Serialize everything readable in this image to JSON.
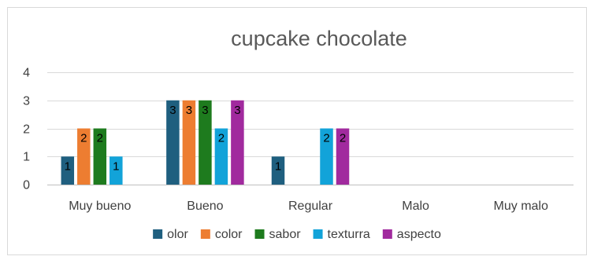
{
  "chart_data": {
    "type": "bar",
    "title": "cupcake chocolate",
    "categories": [
      "Muy bueno",
      "Bueno",
      "Regular",
      "Malo",
      "Muy malo"
    ],
    "series": [
      {
        "name": "olor",
        "color": "#1f5f7f",
        "values": [
          1,
          3,
          1,
          0,
          0
        ]
      },
      {
        "name": "color",
        "color": "#ed7d31",
        "values": [
          2,
          3,
          0,
          0,
          0
        ]
      },
      {
        "name": "sabor",
        "color": "#1e7b1e",
        "values": [
          2,
          3,
          0,
          0,
          0
        ]
      },
      {
        "name": "texturra",
        "color": "#12a3d9",
        "values": [
          1,
          2,
          2,
          0,
          0
        ]
      },
      {
        "name": "aspecto",
        "color": "#a12a9e",
        "values": [
          0,
          3,
          2,
          0,
          0
        ]
      }
    ],
    "ylim": [
      0,
      4
    ],
    "yticks": [
      "0",
      "1",
      "2",
      "3",
      "4"
    ],
    "grid": true,
    "legend": "bottom",
    "data_labels": true
  }
}
